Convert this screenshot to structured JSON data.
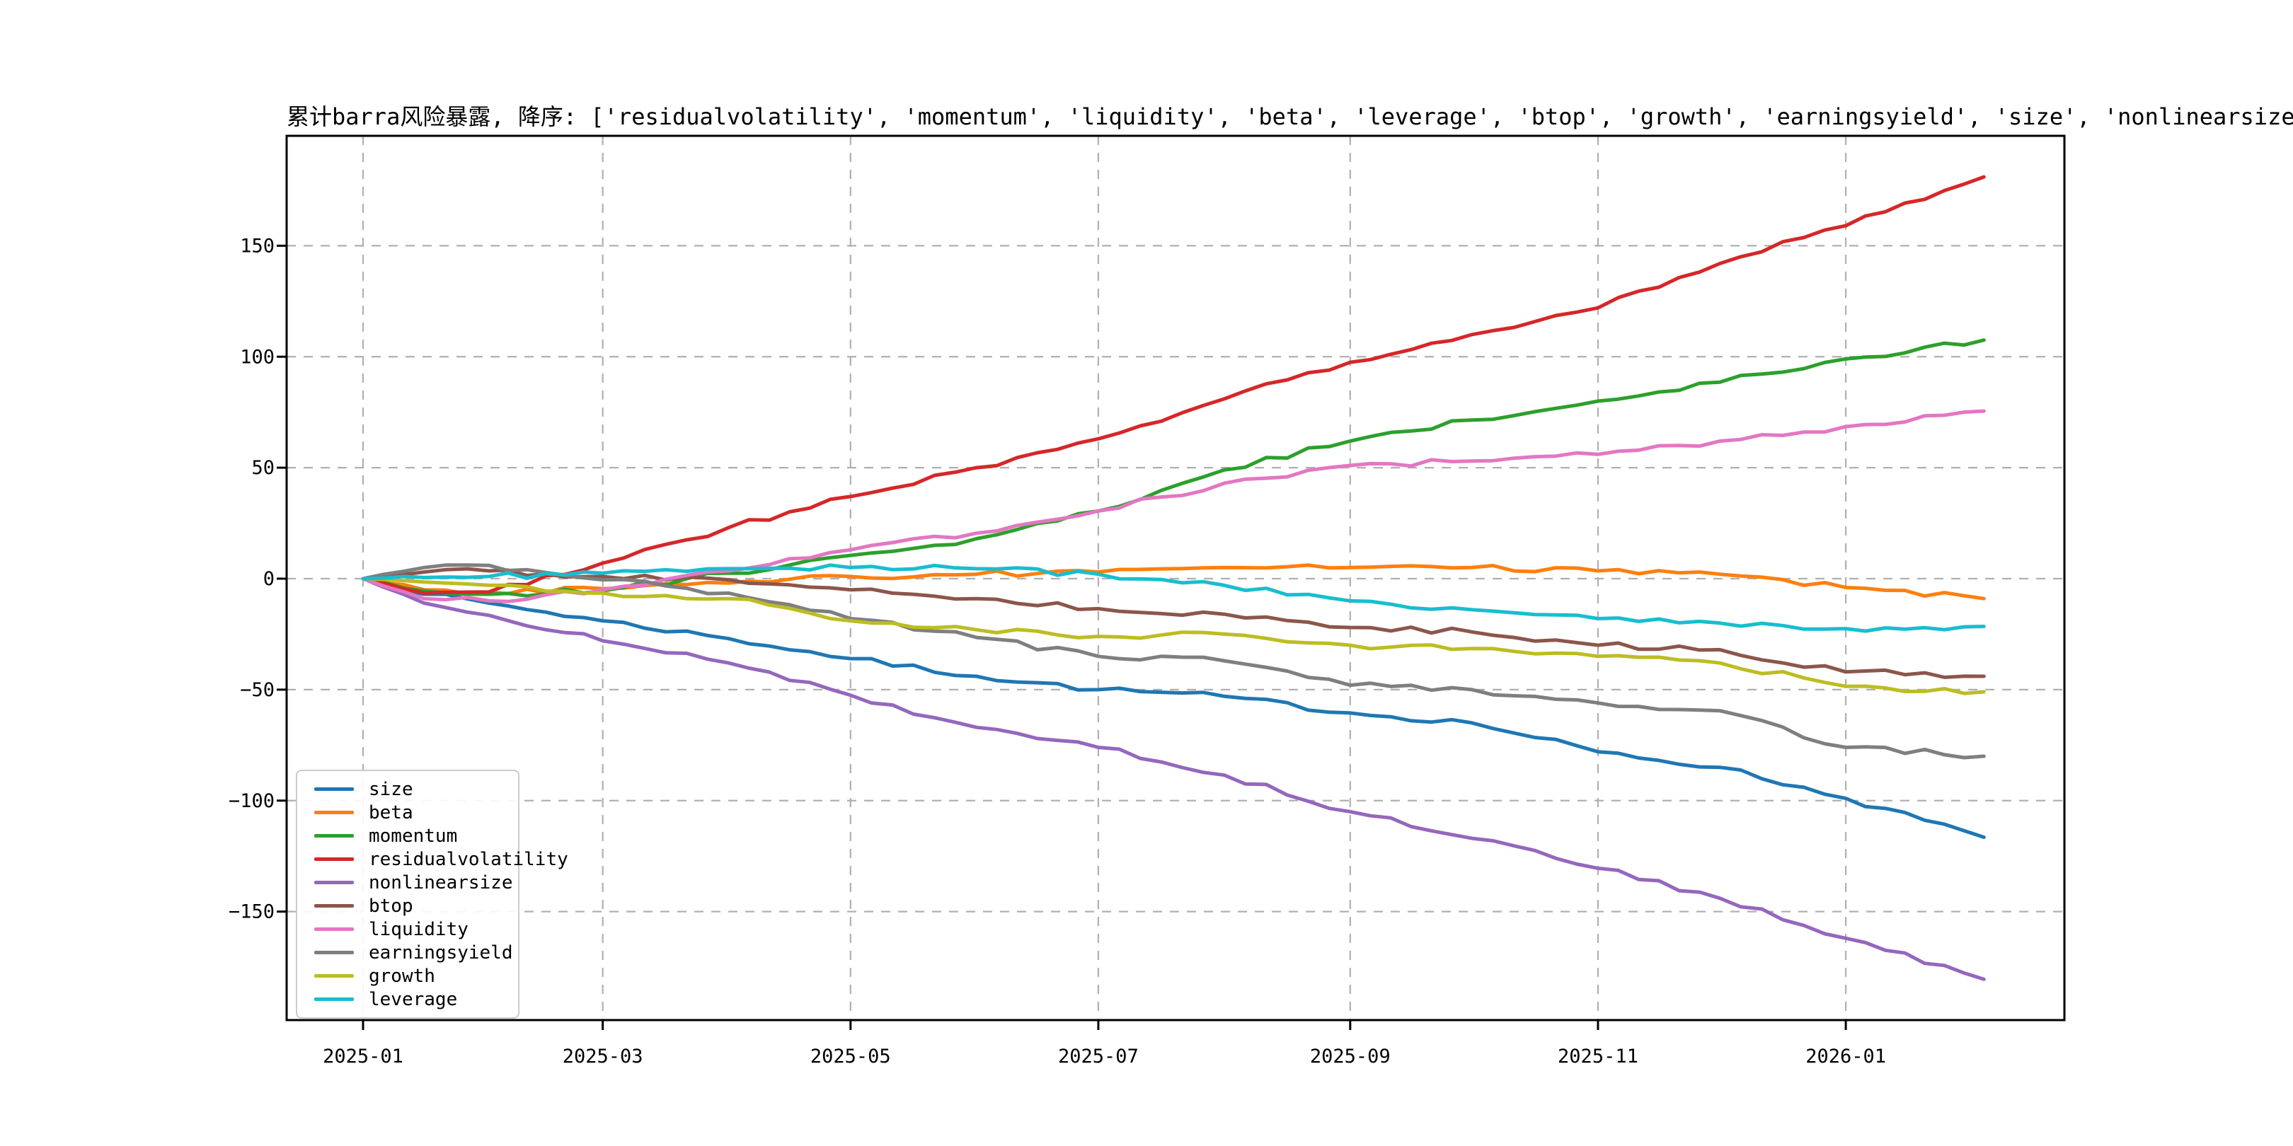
{
  "title": "累计barra风险暴露, 降序: ['residualvolatility', 'momentum', 'liquidity', 'beta', 'leverage', 'btop', 'growth', 'earningsyield', 'size', 'nonlinearsize']",
  "chart_data": {
    "type": "line",
    "title": "累计barra风险暴露, 降序: ['residualvolatility', 'momentum', 'liquidity', 'beta', 'leverage', 'btop', 'growth', 'earningsyield', 'size', 'nonlinearsize']",
    "x": [
      "2025-01-01",
      "2025-01-16",
      "2025-02-01",
      "2025-03-01",
      "2025-04-01",
      "2025-05-01",
      "2025-06-01",
      "2025-07-01",
      "2025-08-01",
      "2025-09-01",
      "2025-10-01",
      "2025-11-01",
      "2025-12-01",
      "2026-01-01",
      "2026-02-04"
    ],
    "x_tick_dates": [
      "2025-01-01",
      "2025-03-01",
      "2025-05-01",
      "2025-07-01",
      "2025-09-01",
      "2025-11-01",
      "2026-01-01"
    ],
    "x_tick_labels": [
      "2025-01",
      "2025-03",
      "2025-05",
      "2025-07",
      "2025-09",
      "2025-11",
      "2026-01"
    ],
    "y_ticks": [
      -150,
      -100,
      -50,
      0,
      50,
      100,
      150
    ],
    "y_tick_labels": [
      "−150",
      "−100",
      "−50",
      "0",
      "50",
      "100",
      "150"
    ],
    "ylim": [
      -199,
      199.5
    ],
    "xlim_days": [
      -19,
      419
    ],
    "grid": true,
    "legend_position": "lower left",
    "grid_color": "#b0b0b0",
    "axis_color": "#000000",
    "series": [
      {
        "name": "size",
        "color": "#1f77b4",
        "values": [
          0,
          -7,
          -11,
          -19,
          -27,
          -36,
          -44,
          -50,
          -53,
          -60.5,
          -65,
          -78,
          -85,
          -99,
          -116.5
        ]
      },
      {
        "name": "beta",
        "color": "#ff7f0e",
        "values": [
          0,
          -5,
          -6,
          -4.5,
          -2,
          1,
          2,
          3,
          5,
          5,
          5,
          3.5,
          2,
          -4,
          -9
        ]
      },
      {
        "name": "momentum",
        "color": "#2ca02c",
        "values": [
          0,
          -5.5,
          -7,
          -5.5,
          2.5,
          10.5,
          18,
          30.5,
          49,
          62,
          71.5,
          80,
          88.5,
          99,
          107.5
        ]
      },
      {
        "name": "residualvolatility",
        "color": "#d62728",
        "values": [
          0,
          -6.5,
          -6,
          7,
          23,
          37,
          50,
          63,
          81,
          97.5,
          110,
          122,
          142,
          159,
          181
        ]
      },
      {
        "name": "nonlinearsize",
        "color": "#9467bd",
        "values": [
          0,
          -11,
          -16.5,
          -28,
          -38,
          -52.5,
          -67,
          -76,
          -88.5,
          -105,
          -117,
          -130.5,
          -144,
          -162,
          -180.5
        ]
      },
      {
        "name": "btop",
        "color": "#8c564b",
        "values": [
          0,
          3,
          3.5,
          1,
          -0.5,
          -5,
          -9,
          -13.5,
          -16,
          -22,
          -24,
          -30,
          -32,
          -42,
          -44
        ]
      },
      {
        "name": "liquidity",
        "color": "#e377c2",
        "values": [
          0,
          -9,
          -10,
          -5,
          3.5,
          13,
          20.5,
          30.5,
          43,
          51,
          53,
          56,
          62,
          68.5,
          75.5
        ]
      },
      {
        "name": "earningsyield",
        "color": "#7f7f7f",
        "values": [
          0,
          5,
          6,
          -0.5,
          -6.5,
          -18,
          -26.5,
          -35,
          -37,
          -48,
          -50,
          -56,
          -59.5,
          -76,
          -80
        ]
      },
      {
        "name": "growth",
        "color": "#bcbd22",
        "values": [
          0,
          -1.5,
          -3,
          -6.5,
          -9,
          -19,
          -23,
          -26,
          -25,
          -30,
          -31.5,
          -35,
          -38,
          -48.5,
          -51
        ]
      },
      {
        "name": "leverage",
        "color": "#17becf",
        "values": [
          0,
          0.5,
          1,
          2.5,
          4.5,
          5,
          4.5,
          2,
          -3,
          -10,
          -14,
          -18,
          -20,
          -22.5,
          -21.5
        ]
      }
    ]
  }
}
